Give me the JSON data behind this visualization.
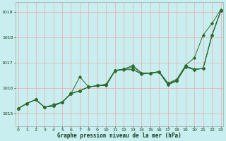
{
  "xlabel": "Graphe pression niveau de la mer (hPa)",
  "xlim": [
    -0.3,
    23.3
  ],
  "ylim": [
    1014.5,
    1019.4
  ],
  "yticks": [
    1015,
    1016,
    1017,
    1018,
    1019
  ],
  "xticks": [
    0,
    1,
    2,
    3,
    4,
    5,
    6,
    7,
    8,
    9,
    10,
    11,
    12,
    13,
    14,
    15,
    16,
    17,
    18,
    19,
    20,
    21,
    22,
    23
  ],
  "background_color": "#c8eef0",
  "grid_color": "#e8b4b8",
  "line_color": "#2d6a2d",
  "series": [
    [
      1015.2,
      1015.4,
      1015.55,
      1015.25,
      1015.35,
      1015.45,
      1015.8,
      1015.9,
      1016.05,
      1016.1,
      1016.15,
      1016.7,
      1016.75,
      1016.75,
      1016.55,
      1016.6,
      1016.65,
      1016.2,
      1016.35,
      1016.9,
      1017.2,
      1018.1,
      1018.55,
      1019.1
    ],
    [
      1015.2,
      1015.4,
      1015.55,
      1015.25,
      1015.3,
      1015.45,
      1015.78,
      1016.45,
      1016.05,
      1016.1,
      1016.15,
      1016.7,
      1016.75,
      1016.85,
      1016.6,
      1016.6,
      1016.65,
      1016.2,
      1016.3,
      1016.88,
      1016.75,
      1016.78,
      1018.1,
      1019.05
    ],
    [
      1015.2,
      1015.4,
      1015.55,
      1015.25,
      1015.3,
      1015.45,
      1015.78,
      1015.9,
      1016.05,
      1016.1,
      1016.15,
      1016.7,
      1016.75,
      1016.9,
      1016.6,
      1016.6,
      1016.65,
      1016.15,
      1016.3,
      1016.85,
      1016.73,
      1016.78,
      1018.08,
      1019.05
    ],
    [
      1015.2,
      1015.4,
      1015.55,
      1015.25,
      1015.3,
      1015.45,
      1015.78,
      1015.9,
      1016.05,
      1016.1,
      1016.1,
      1016.68,
      1016.73,
      1016.73,
      1016.58,
      1016.58,
      1016.63,
      1016.13,
      1016.28,
      1016.83,
      1016.73,
      1016.78,
      1018.08,
      1019.05
    ]
  ]
}
